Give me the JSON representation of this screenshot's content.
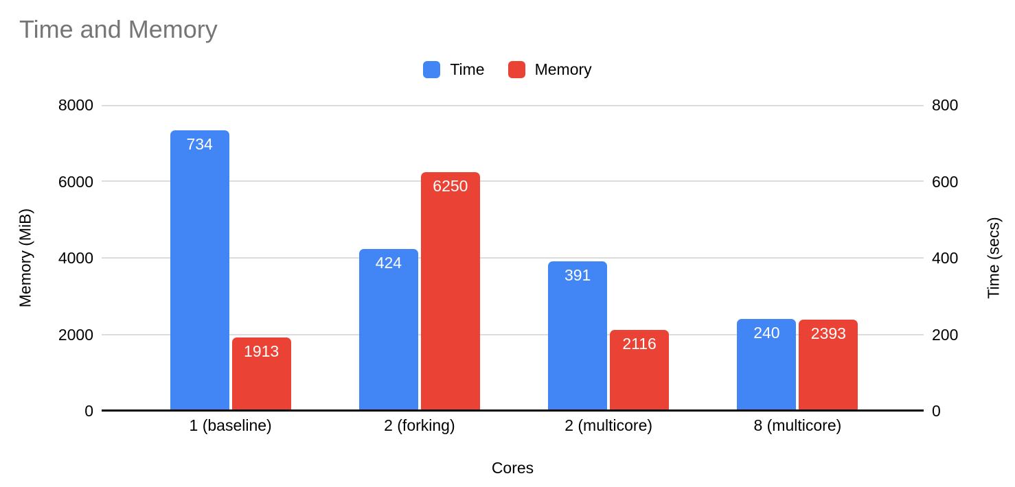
{
  "chart_data": {
    "type": "bar",
    "title": "Time and Memory",
    "title_color": "#757575",
    "categories": [
      "1 (baseline)",
      "2 (forking)",
      "2 (multicore)",
      "8 (multicore)"
    ],
    "series": [
      {
        "name": "Time",
        "color": "#4285F4",
        "axis": "right",
        "values": [
          734,
          424,
          391,
          240
        ]
      },
      {
        "name": "Memory",
        "color": "#EA4335",
        "axis": "left",
        "values": [
          1913,
          6250,
          2116,
          2393
        ]
      }
    ],
    "xlabel": "Cores",
    "left_ylabel": "Memory (MiB)",
    "right_ylabel": "Time (secs)",
    "left_ylim": [
      0,
      8000
    ],
    "right_ylim": [
      0,
      800
    ],
    "left_ticks": [
      "0",
      "2000",
      "4000",
      "6000",
      "8000"
    ],
    "right_ticks": [
      "0",
      "200",
      "400",
      "600",
      "800"
    ],
    "grid": true,
    "gridline_color": "#dcdcdc",
    "legend_position": "top",
    "bar_label_color": "#ffffff"
  }
}
